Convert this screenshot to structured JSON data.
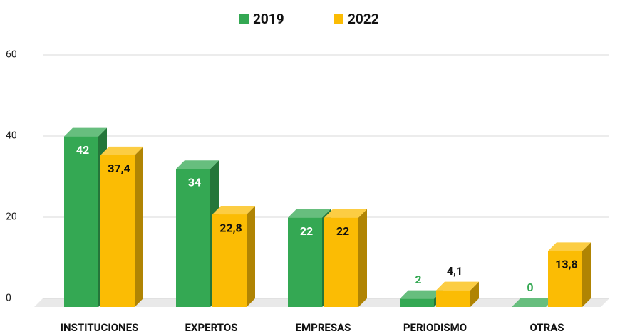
{
  "chart_data": {
    "type": "bar3d",
    "categories": [
      "INSTITUCIONES",
      "EXPERTOS",
      "EMPRESAS",
      "PERIODISMO",
      "OTRAS"
    ],
    "series": [
      {
        "name": "2019",
        "color": "#34a853",
        "values": [
          42,
          34,
          22,
          2,
          0
        ]
      },
      {
        "name": "2022",
        "color": "#fbbc04",
        "values": [
          37.4,
          22.8,
          22,
          4.1,
          13.8
        ],
        "value_labels": [
          "37,4",
          "22,8",
          "22",
          "4,1",
          "13,8"
        ]
      }
    ],
    "ylim": [
      0,
      60
    ],
    "yticks": [
      0,
      20,
      40,
      60
    ],
    "grid": true,
    "legend": "top"
  }
}
